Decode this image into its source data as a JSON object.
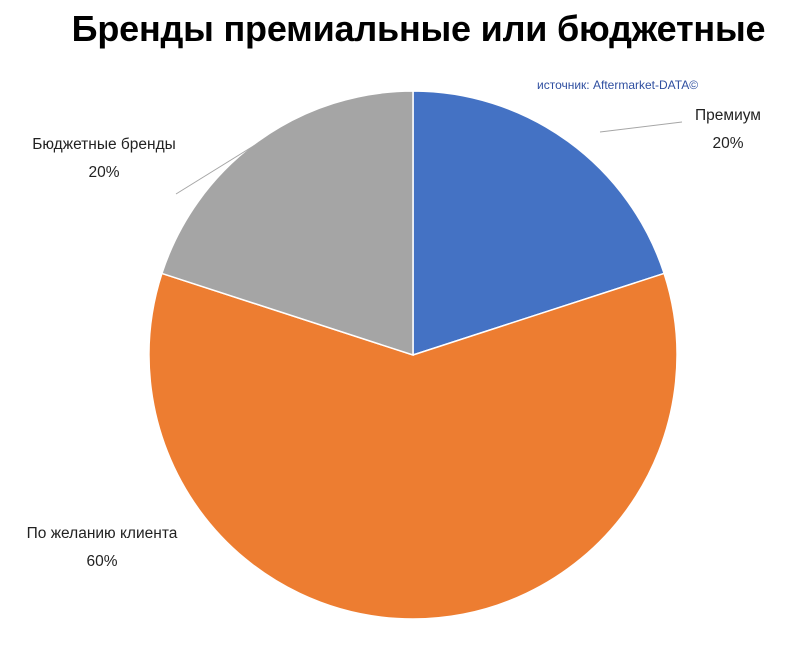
{
  "title": "Бренды премиальные или бюджетные",
  "source": "источник: Aftermarket-DATA©",
  "chart_data": {
    "type": "pie",
    "title": "Бренды премиальные или бюджетные",
    "slices": [
      {
        "name": "Премиум",
        "value": 20,
        "label": "20%",
        "color": "#4472c4"
      },
      {
        "name": "По желанию клиента",
        "value": 60,
        "label": "60%",
        "color": "#ed7d31"
      },
      {
        "name": "Бюджетные бренды",
        "value": 20,
        "label": "20%",
        "color": "#a5a5a5"
      }
    ],
    "start_angle_deg": 0,
    "direction": "clockwise"
  }
}
